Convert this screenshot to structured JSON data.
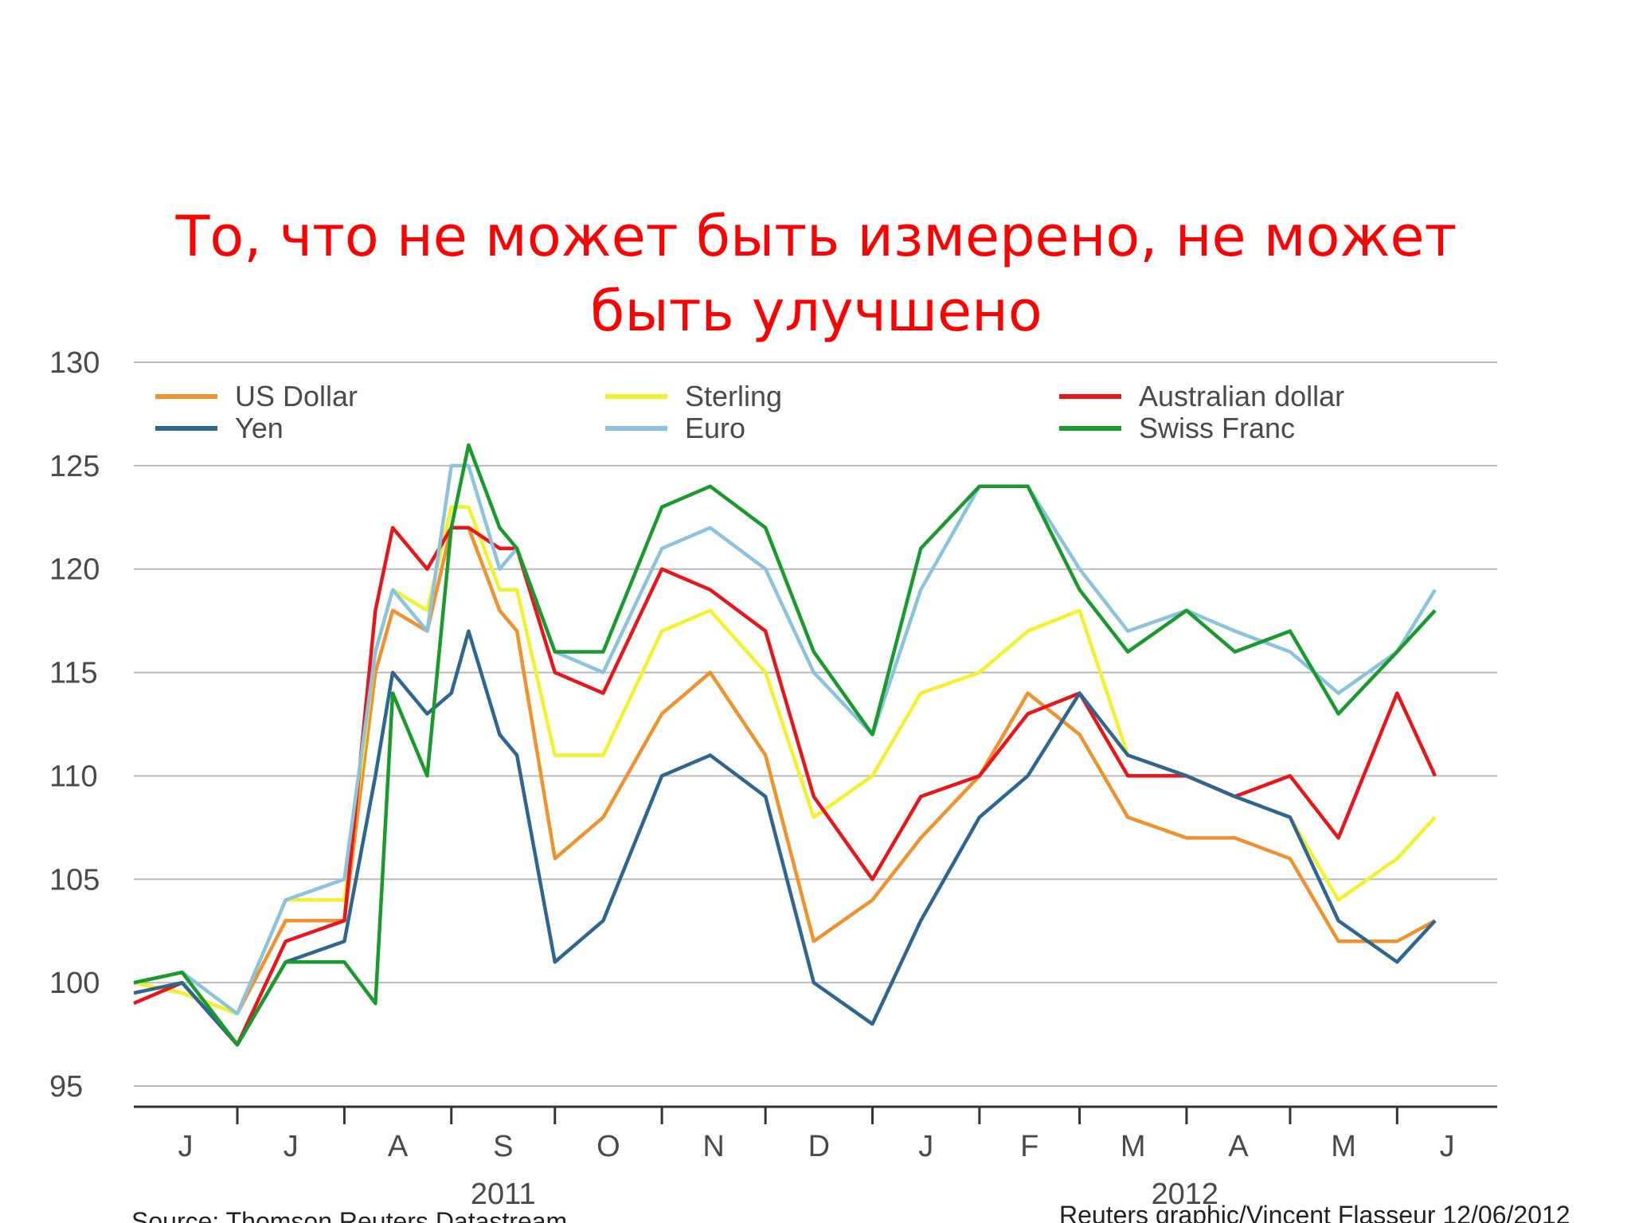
{
  "slide": {
    "title": "То, что не может быть измерено, не может быть улучшено"
  },
  "chart_data": {
    "type": "line",
    "ylim": [
      94,
      130
    ],
    "y_ticks": [
      "95",
      "100",
      "105",
      "110",
      "115",
      "120",
      "125",
      "130"
    ],
    "x_ticks": [
      "J",
      "J",
      "A",
      "S",
      "O",
      "N",
      "D",
      "J",
      "F",
      "M",
      "A",
      "M",
      "J"
    ],
    "year_labels": [
      "2011",
      "2012"
    ],
    "grid": true,
    "legend_position": "top",
    "source": "Source: Thomson Reuters Datastream",
    "credit": "Reuters graphic/Vincent Flasseur 12/06/2012",
    "x": [
      "2011-06-01",
      "2011-06-15",
      "2011-07-01",
      "2011-07-15",
      "2011-08-01",
      "2011-08-10",
      "2011-08-15",
      "2011-08-25",
      "2011-09-01",
      "2011-09-06",
      "2011-09-15",
      "2011-09-20",
      "2011-10-01",
      "2011-10-15",
      "2011-11-01",
      "2011-11-15",
      "2011-12-01",
      "2011-12-15",
      "2012-01-01",
      "2012-01-15",
      "2012-02-01",
      "2012-02-15",
      "2012-03-01",
      "2012-03-15",
      "2012-04-01",
      "2012-04-15",
      "2012-05-01",
      "2012-05-15",
      "2012-06-01",
      "2012-06-12"
    ],
    "series": [
      {
        "name": "US Dollar",
        "color": "#f0922b",
        "values": [
          100,
          99.5,
          98.5,
          103,
          103,
          115,
          118,
          117,
          122,
          122,
          118,
          117,
          106,
          108,
          113,
          115,
          111,
          102,
          104,
          107,
          110,
          114,
          112,
          108,
          107,
          107,
          106,
          102,
          102,
          103
        ]
      },
      {
        "name": "Sterling",
        "color": "#f2f22c",
        "values": [
          100,
          99.5,
          98.5,
          104,
          104,
          116,
          119,
          118,
          123,
          123,
          119,
          119,
          111,
          111,
          117,
          118,
          115,
          108,
          110,
          114,
          115,
          117,
          118,
          111,
          110,
          109,
          108,
          104,
          106,
          108
        ]
      },
      {
        "name": "Australian dollar",
        "color": "#e8151b",
        "values": [
          99,
          100,
          97,
          102,
          103,
          118,
          122,
          120,
          122,
          122,
          121,
          121,
          115,
          114,
          120,
          119,
          117,
          109,
          105,
          109,
          110,
          113,
          114,
          110,
          110,
          109,
          110,
          107,
          114,
          110
        ]
      },
      {
        "name": "Yen",
        "color": "#2f6690",
        "values": [
          99.5,
          100,
          97,
          101,
          102,
          110,
          115,
          113,
          114,
          117,
          112,
          111,
          101,
          103,
          110,
          111,
          109,
          100,
          98,
          103,
          108,
          110,
          114,
          111,
          110,
          109,
          108,
          103,
          101,
          103
        ]
      },
      {
        "name": "Euro",
        "color": "#8bc3de",
        "values": [
          100,
          100.5,
          98.5,
          104,
          105,
          116,
          119,
          117,
          125,
          125,
          120,
          121,
          116,
          115,
          121,
          122,
          120,
          115,
          112,
          119,
          124,
          124,
          120,
          117,
          118,
          117,
          116,
          114,
          116,
          119
        ]
      },
      {
        "name": "Swiss Franc",
        "color": "#189a2c",
        "values": [
          100,
          100.5,
          97,
          101,
          101,
          99,
          114,
          110,
          122,
          126,
          122,
          121,
          116,
          116,
          123,
          124,
          122,
          116,
          112,
          121,
          124,
          124,
          119,
          116,
          118,
          116,
          117,
          113,
          116,
          118
        ]
      }
    ]
  }
}
